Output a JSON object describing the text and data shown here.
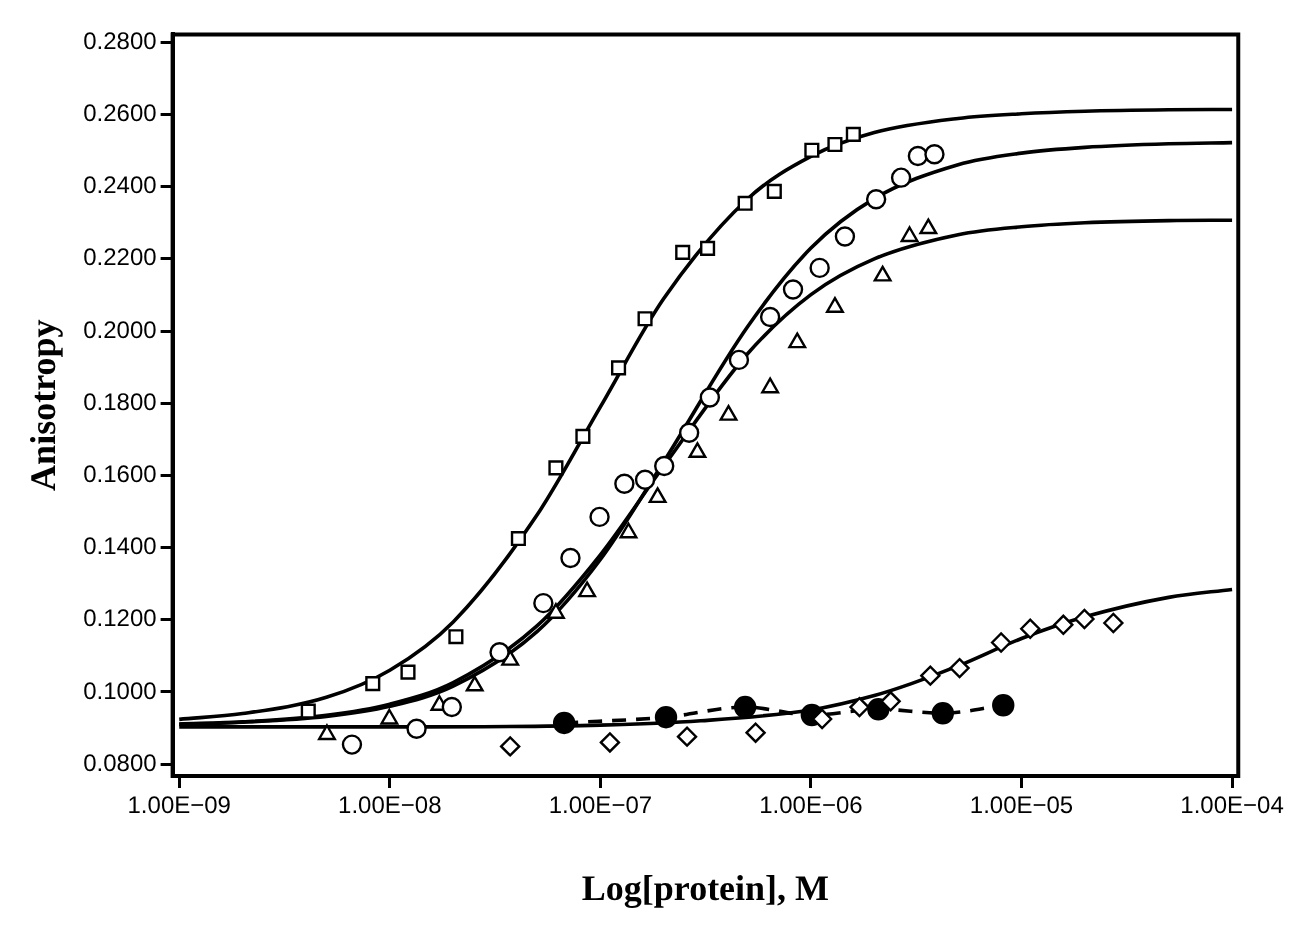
{
  "chart_data": {
    "type": "scatter",
    "xlabel": "Log[protein], M",
    "ylabel": "Anisotropy",
    "log": "x",
    "grid": false,
    "legend": false,
    "xlim": [
      9.3e-10,
      0.000107
    ],
    "ylim": [
      0.0767,
      0.2822
    ],
    "xticks": [
      {
        "value": 1e-09,
        "label": "1.00E−09"
      },
      {
        "value": 1e-08,
        "label": "1.00E−08"
      },
      {
        "value": 1e-07,
        "label": "1.00E−07"
      },
      {
        "value": 1e-06,
        "label": "1.00E−06"
      },
      {
        "value": 1e-05,
        "label": "1.00E−05"
      },
      {
        "value": 0.0001,
        "label": "1.00E−04"
      }
    ],
    "yticks": [
      {
        "value": 0.08,
        "label": "0.0800"
      },
      {
        "value": 0.1,
        "label": "0.1000"
      },
      {
        "value": 0.12,
        "label": "0.1200"
      },
      {
        "value": 0.14,
        "label": "0.1400"
      },
      {
        "value": 0.16,
        "label": "0.1600"
      },
      {
        "value": 0.18,
        "label": "0.1800"
      },
      {
        "value": 0.2,
        "label": "0.2000"
      },
      {
        "value": 0.22,
        "label": "0.2200"
      },
      {
        "value": 0.24,
        "label": "0.2400"
      },
      {
        "value": 0.26,
        "label": "0.2600"
      },
      {
        "value": 0.28,
        "label": "0.2800"
      }
    ],
    "series": [
      {
        "type": "scatter",
        "marker": "square",
        "color": "#000000",
        "x": [
          4.1e-09,
          8.3e-09,
          1.22e-08,
          2.06e-08,
          4.08e-08,
          6.15e-08,
          8.26e-08,
          1.22e-07,
          1.63e-07,
          2.46e-07,
          3.23e-07,
          4.87e-07,
          6.7e-07,
          1.01e-06,
          1.3e-06,
          1.59e-06
        ],
        "values": [
          0.0947,
          0.1023,
          0.1055,
          0.1153,
          0.1425,
          0.1621,
          0.1708,
          0.1898,
          0.2034,
          0.2218,
          0.2229,
          0.2354,
          0.2387,
          0.2501,
          0.2517,
          0.2545
        ]
      },
      {
        "type": "scatter",
        "marker": "circle",
        "color": "#000000",
        "x": [
          6.61e-09,
          1.34e-08,
          1.97e-08,
          3.32e-08,
          5.36e-08,
          7.21e-08,
          9.91e-08,
          1.3e-07,
          1.63e-07,
          2.01e-07,
          2.64e-07,
          3.31e-07,
          4.55e-07,
          6.4e-07,
          8.22e-07,
          1.1e-06,
          1.45e-06,
          2.04e-06,
          2.68e-06,
          3.22e-06,
          3.86e-06
        ],
        "values": [
          0.0854,
          0.0898,
          0.0958,
          0.111,
          0.1246,
          0.1371,
          0.1485,
          0.1577,
          0.1588,
          0.1626,
          0.1718,
          0.1816,
          0.192,
          0.2039,
          0.2115,
          0.2175,
          0.2262,
          0.2365,
          0.2425,
          0.2485,
          0.249
        ]
      },
      {
        "type": "scatter",
        "marker": "triangle",
        "color": "#000000",
        "x": [
          5.03e-09,
          9.95e-09,
          1.72e-08,
          2.53e-08,
          3.73e-08,
          6.15e-08,
          8.65e-08,
          1.36e-07,
          1.87e-07,
          2.89e-07,
          4.06e-07,
          6.4e-07,
          8.61e-07,
          1.3e-06,
          2.19e-06,
          2.94e-06,
          3.61e-06
        ],
        "values": [
          0.0882,
          0.0925,
          0.0963,
          0.1017,
          0.1088,
          0.1218,
          0.1278,
          0.1441,
          0.1539,
          0.1664,
          0.1767,
          0.1843,
          0.1968,
          0.2066,
          0.2153,
          0.2262,
          0.2284
        ]
      },
      {
        "type": "scatter",
        "marker": "diamond",
        "color": "#000000",
        "x": [
          3.73e-08,
          1.11e-07,
          2.58e-07,
          5.46e-07,
          1.13e-06,
          1.7e-06,
          2.39e-06,
          3.69e-06,
          5.08e-06,
          8e-06,
          1.1e-05,
          1.58e-05,
          1.99e-05,
          2.73e-05
        ],
        "values": [
          0.0849,
          0.086,
          0.0876,
          0.0887,
          0.0925,
          0.0958,
          0.0974,
          0.1045,
          0.1066,
          0.1137,
          0.1175,
          0.1186,
          0.1202,
          0.1191
        ]
      },
      {
        "type": "line",
        "marker": "circle",
        "line_style": "dashed",
        "color": "#000000",
        "x": [
          6.73e-08,
          2.05e-07,
          4.87e-07,
          1.01e-06,
          2.09e-06,
          4.23e-06,
          8.19e-06
        ],
        "values": [
          0.0914,
          0.093,
          0.0958,
          0.0936,
          0.0952,
          0.0941,
          0.0963
        ]
      },
      {
        "type": "line",
        "marker": "none",
        "line_style": "solid",
        "color": "#000000",
        "x": [
          1e-09,
          2e-09,
          5e-09,
          1e-08,
          2e-08,
          5e-08,
          1e-07,
          2e-07,
          5e-07,
          1e-06,
          2e-06,
          5e-06,
          1e-05,
          2e-05,
          5e-05,
          0.0001
        ],
        "values": [
          0.0924,
          0.094,
          0.0985,
          0.106,
          0.1194,
          0.149,
          0.179,
          0.209,
          0.2366,
          0.2484,
          0.255,
          0.2589,
          0.2602,
          0.2609,
          0.2613,
          0.2614
        ]
      },
      {
        "type": "line",
        "marker": "none",
        "line_style": "solid",
        "color": "#000000",
        "x": [
          1e-09,
          2e-09,
          5e-09,
          1e-08,
          2e-08,
          5e-08,
          1e-07,
          2e-07,
          5e-07,
          1e-06,
          2e-06,
          5e-06,
          1e-05,
          2e-05,
          5e-05,
          0.0001
        ],
        "values": [
          0.091,
          0.0916,
          0.0932,
          0.096,
          0.1016,
          0.1167,
          0.1367,
          0.1638,
          0.2012,
          0.223,
          0.2367,
          0.2461,
          0.2493,
          0.2509,
          0.2519,
          0.2522
        ]
      },
      {
        "type": "line",
        "marker": "none",
        "line_style": "solid",
        "color": "#000000",
        "x": [
          1e-09,
          2e-09,
          5e-09,
          1e-08,
          2e-08,
          5e-08,
          1e-07,
          2e-07,
          5e-07,
          1e-06,
          2e-06,
          5e-06,
          1e-05,
          2e-05,
          5e-05,
          0.0001
        ],
        "values": [
          0.0911,
          0.0917,
          0.0935,
          0.0966,
          0.1026,
          0.1183,
          0.138,
          0.1626,
          0.1937,
          0.2101,
          0.22,
          0.2267,
          0.2289,
          0.23,
          0.2306,
          0.2307
        ]
      },
      {
        "type": "line",
        "marker": "none",
        "line_style": "solid",
        "color": "#000000",
        "x": [
          1e-09,
          1e-08,
          1e-07,
          3e-07,
          1e-06,
          2e-06,
          3e-06,
          5e-06,
          1e-05,
          2e-05,
          5e-05,
          0.0001
        ],
        "values": [
          0.0903,
          0.0903,
          0.0908,
          0.092,
          0.095,
          0.099,
          0.1023,
          0.1072,
          0.1148,
          0.1208,
          0.1262,
          0.1284
        ]
      }
    ]
  }
}
